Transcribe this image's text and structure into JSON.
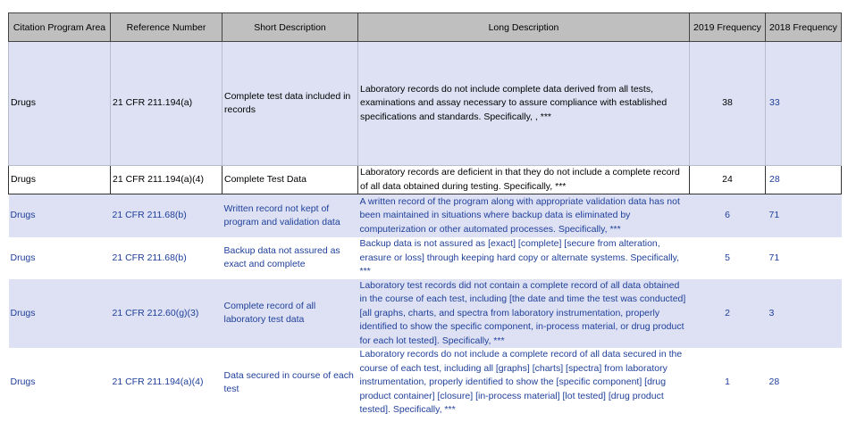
{
  "table": {
    "header": [
      "Citation Program Area",
      "Reference Number",
      "Short Description",
      "Long Description",
      "2019 Frequency",
      "2018 Frequency"
    ],
    "rows": [
      [
        "Drugs",
        "21 CFR 211.194(a)",
        "Complete test data included in records",
        "Laboratory records do not include complete data derived from all tests, examinations and assay necessary to assure compliance with established specifications and standards.  Specifically, , ***",
        38,
        33
      ],
      [
        "Drugs",
        "21 CFR 211.194(a)(4)",
        "Complete Test Data",
        "Laboratory records are deficient in that they do not include a complete record of all data obtained during testing.  Specifically, ***",
        24,
        28
      ],
      [
        "Drugs",
        "21 CFR 211.68(b)",
        "Written record not kept of program and validation data",
        "A written record of the program along with appropriate validation data has not been maintained in situations where backup data is eliminated by computerization or other automated processes.  Specifically, ***",
        6,
        71
      ],
      [
        "Drugs",
        "21 CFR 211.68(b)",
        "Backup data not assured as exact and complete",
        "Backup data is not assured as [exact] [complete] [secure from alteration, erasure or loss] through keeping hard copy or alternate systems. Specifically, ***",
        5,
        71
      ],
      [
        "Drugs",
        "21 CFR 212.60(g)(3)",
        "Complete record of all laboratory test data",
        "Laboratory test records did not contain a complete record of all data obtained in the course of each test, including [the date and time the test was conducted] [all graphs, charts, and spectra from laboratory instrumentation, properly identified to show the specific component, in-process material, or drug product for each lot tested].  Specifically, ***",
        2,
        3
      ],
      [
        "Drugs",
        "21 CFR 211.194(a)(4)",
        "Data secured in course of each test",
        "Laboratory records do not include a complete record of all data secured in the course of each test, including all [graphs] [charts] [spectra] from laboratory instrumentation, properly identified to show the [specific component] [drug product container] [closure] [in-process material] [lot tested] [drug product tested].  Specifically, ***",
        1,
        28
      ]
    ]
  }
}
